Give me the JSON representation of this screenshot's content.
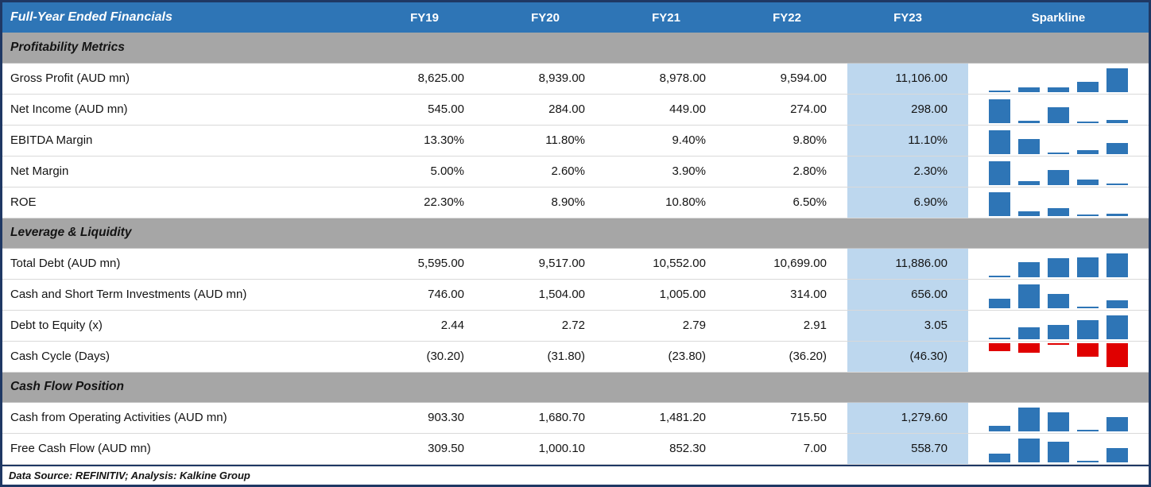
{
  "header": {
    "title": "Full-Year Ended Financials",
    "columns": [
      "FY19",
      "FY20",
      "FY21",
      "FY22",
      "FY23"
    ],
    "sparkline": "Sparkline"
  },
  "footer": {
    "text": "Data Source: REFINITIV; Analysis: Kalkine Group"
  },
  "colors": {
    "header_bg": "#2E75B6",
    "section_bg": "#A6A6A6",
    "fy23_bg": "#BDD7EE",
    "spark_pos": "#2E75B6",
    "spark_neg": "#E00000",
    "border": "#1F3864"
  },
  "chart_data": {
    "type": "table",
    "title": "Full-Year Ended Financials",
    "columns": [
      "FY19",
      "FY20",
      "FY21",
      "FY22",
      "FY23"
    ],
    "highlight_column": "FY23",
    "sparkline_type": "column",
    "sections": [
      {
        "title": "Profitability Metrics",
        "rows": [
          {
            "label": "Gross Profit (AUD mn)",
            "display": [
              "8,625.00",
              "8,939.00",
              "8,978.00",
              "9,594.00",
              "11,106.00"
            ],
            "values": [
              8625,
              8939,
              8978,
              9594,
              11106
            ]
          },
          {
            "label": "Net Income (AUD mn)",
            "display": [
              "545.00",
              "284.00",
              "449.00",
              "274.00",
              "298.00"
            ],
            "values": [
              545,
              284,
              449,
              274,
              298
            ]
          },
          {
            "label": "EBITDA Margin",
            "display": [
              "13.30%",
              "11.80%",
              "9.40%",
              "9.80%",
              "11.10%"
            ],
            "values": [
              13.3,
              11.8,
              9.4,
              9.8,
              11.1
            ]
          },
          {
            "label": "Net Margin",
            "display": [
              "5.00%",
              "2.60%",
              "3.90%",
              "2.80%",
              "2.30%"
            ],
            "values": [
              5.0,
              2.6,
              3.9,
              2.8,
              2.3
            ]
          },
          {
            "label": "ROE",
            "display": [
              "22.30%",
              "8.90%",
              "10.80%",
              "6.50%",
              "6.90%"
            ],
            "values": [
              22.3,
              8.9,
              10.8,
              6.5,
              6.9
            ]
          }
        ]
      },
      {
        "title": "Leverage & Liquidity",
        "rows": [
          {
            "label": "Total Debt (AUD mn)",
            "display": [
              "5,595.00",
              "9,517.00",
              "10,552.00",
              "10,699.00",
              "11,886.00"
            ],
            "values": [
              5595,
              9517,
              10552,
              10699,
              11886
            ]
          },
          {
            "label": "Cash and Short Term Investments (AUD mn)",
            "display": [
              "746.00",
              "1,504.00",
              "1,005.00",
              "314.00",
              "656.00"
            ],
            "values": [
              746,
              1504,
              1005,
              314,
              656
            ]
          },
          {
            "label": "Debt to Equity (x)",
            "display": [
              "2.44",
              "2.72",
              "2.79",
              "2.91",
              "3.05"
            ],
            "values": [
              2.44,
              2.72,
              2.79,
              2.91,
              3.05
            ]
          },
          {
            "label": "Cash Cycle (Days)",
            "display": [
              "(30.20)",
              "(31.80)",
              "(23.80)",
              "(36.20)",
              "(46.30)"
            ],
            "values": [
              -30.2,
              -31.8,
              -23.8,
              -36.2,
              -46.3
            ]
          }
        ]
      },
      {
        "title": "Cash Flow Position",
        "rows": [
          {
            "label": "Cash from Operating Activities (AUD mn)",
            "display": [
              "903.30",
              "1,680.70",
              "1,481.20",
              "715.50",
              "1,279.60"
            ],
            "values": [
              903.3,
              1680.7,
              1481.2,
              715.5,
              1279.6
            ]
          },
          {
            "label": "Free Cash Flow (AUD mn)",
            "display": [
              "309.50",
              "1,000.10",
              "852.30",
              "7.00",
              "558.70"
            ],
            "values": [
              309.5,
              1000.1,
              852.3,
              7.0,
              558.7
            ]
          }
        ]
      }
    ]
  }
}
